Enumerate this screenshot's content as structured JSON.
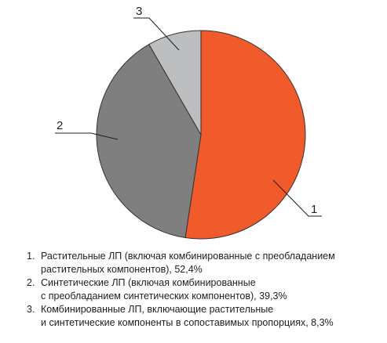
{
  "chart_data": {
    "type": "pie",
    "title": "",
    "start_angle_deg": 0,
    "direction": "clockwise",
    "slices": [
      {
        "label": "1",
        "value": 52.4,
        "color": "#f15a2b"
      },
      {
        "label": "2",
        "value": 39.3,
        "color": "#7f7f80"
      },
      {
        "label": "3",
        "value": 8.3,
        "color": "#bdbec0"
      }
    ],
    "legend": [
      {
        "number": "1.",
        "text": "Растительные ЛП (включая комбинированные с преобладанием\nрастительных компонентов), 52,4%"
      },
      {
        "number": "2.",
        "text": "Синтетические ЛП (включая комбинированные\nс преобладанием синтетических компонентов), 39,3%"
      },
      {
        "number": "3.",
        "text": "Комбинированные ЛП, включающие растительные\nи синтетические компоненты в сопоставимых пропорциях, 8,3%"
      }
    ],
    "legend_placement": "bottom",
    "grid": false
  }
}
